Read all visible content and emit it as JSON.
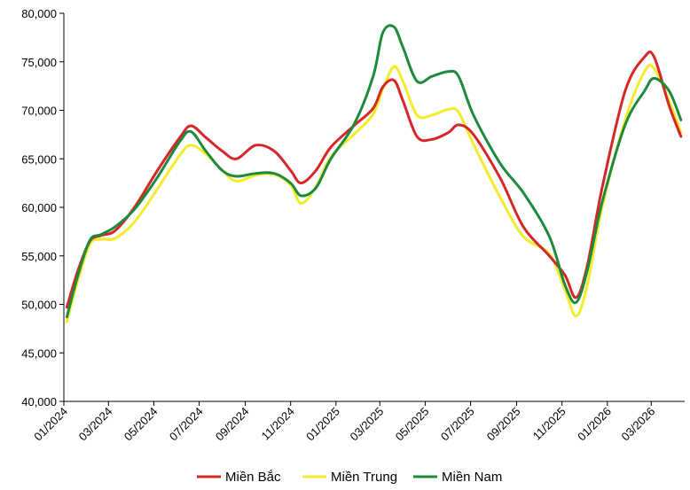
{
  "chart_data": {
    "type": "line",
    "title": "",
    "xlabel": "",
    "ylabel": "",
    "ylim": [
      40000,
      80000
    ],
    "yticks": [
      40000,
      45000,
      50000,
      55000,
      60000,
      65000,
      70000,
      75000,
      80000
    ],
    "ytick_labels": [
      "40,000",
      "45,000",
      "50,000",
      "55,000",
      "60,000",
      "65,000",
      "70,000",
      "75,000",
      "80,000"
    ],
    "x_tick_labels": [
      "01/2024",
      "03/2024",
      "05/2024",
      "07/2024",
      "09/2024",
      "11/2024",
      "01/2025",
      "03/2025",
      "05/2025",
      "07/2025",
      "09/2025",
      "11/2025",
      "01/2026",
      "03/2026"
    ],
    "grid": false,
    "legend_position": "bottom",
    "series": [
      {
        "name": "Miền Bắc",
        "color": "#d62728",
        "points": [
          [
            "2024-01-05",
            49700
          ],
          [
            "2024-01-20",
            53500
          ],
          [
            "2024-02-05",
            56500
          ],
          [
            "2024-02-20",
            57100
          ],
          [
            "2024-03-10",
            57600
          ],
          [
            "2024-04-05",
            60000
          ],
          [
            "2024-05-05",
            63700
          ],
          [
            "2024-06-05",
            67200
          ],
          [
            "2024-06-20",
            68400
          ],
          [
            "2024-07-10",
            67200
          ],
          [
            "2024-08-01",
            65800
          ],
          [
            "2024-08-20",
            65000
          ],
          [
            "2024-09-15",
            66400
          ],
          [
            "2024-10-10",
            65800
          ],
          [
            "2024-11-01",
            63800
          ],
          [
            "2024-11-15",
            62500
          ],
          [
            "2024-12-05",
            63800
          ],
          [
            "2024-12-25",
            66200
          ],
          [
            "2025-01-25",
            68400
          ],
          [
            "2025-02-20",
            70200
          ],
          [
            "2025-03-05",
            72400
          ],
          [
            "2025-03-20",
            73100
          ],
          [
            "2025-04-01",
            71000
          ],
          [
            "2025-04-20",
            67300
          ],
          [
            "2025-05-10",
            67000
          ],
          [
            "2025-06-01",
            67700
          ],
          [
            "2025-06-15",
            68500
          ],
          [
            "2025-07-05",
            67500
          ],
          [
            "2025-08-10",
            63000
          ],
          [
            "2025-09-10",
            58000
          ],
          [
            "2025-10-15",
            55000
          ],
          [
            "2025-11-05",
            53000
          ],
          [
            "2025-11-20",
            50700
          ],
          [
            "2025-12-05",
            54000
          ],
          [
            "2025-12-25",
            62000
          ],
          [
            "2026-01-25",
            72000
          ],
          [
            "2026-02-20",
            75500
          ],
          [
            "2026-03-05",
            75500
          ],
          [
            "2026-03-25",
            70500
          ],
          [
            "2026-04-10",
            67300
          ]
        ]
      },
      {
        "name": "Miền Trung",
        "color": "#f2ec2b",
        "points": [
          [
            "2024-01-05",
            48200
          ],
          [
            "2024-01-20",
            52500
          ],
          [
            "2024-02-05",
            56200
          ],
          [
            "2024-02-20",
            56700
          ],
          [
            "2024-03-10",
            56800
          ],
          [
            "2024-04-05",
            58500
          ],
          [
            "2024-05-05",
            61800
          ],
          [
            "2024-06-05",
            65400
          ],
          [
            "2024-06-20",
            66400
          ],
          [
            "2024-07-10",
            65500
          ],
          [
            "2024-08-01",
            63800
          ],
          [
            "2024-08-20",
            62700
          ],
          [
            "2024-09-15",
            63300
          ],
          [
            "2024-10-10",
            63400
          ],
          [
            "2024-11-01",
            62300
          ],
          [
            "2024-11-15",
            60400
          ],
          [
            "2024-12-05",
            62100
          ],
          [
            "2024-12-25",
            65200
          ],
          [
            "2025-01-25",
            67500
          ],
          [
            "2025-02-20",
            69600
          ],
          [
            "2025-03-05",
            72200
          ],
          [
            "2025-03-20",
            74500
          ],
          [
            "2025-04-01",
            73000
          ],
          [
            "2025-04-20",
            69500
          ],
          [
            "2025-05-10",
            69500
          ],
          [
            "2025-06-01",
            70100
          ],
          [
            "2025-06-15",
            69800
          ],
          [
            "2025-07-05",
            66500
          ],
          [
            "2025-08-10",
            61000
          ],
          [
            "2025-09-10",
            57000
          ],
          [
            "2025-10-15",
            55200
          ],
          [
            "2025-11-05",
            51500
          ],
          [
            "2025-11-20",
            48800
          ],
          [
            "2025-12-05",
            52000
          ],
          [
            "2025-12-25",
            60000
          ],
          [
            "2026-01-25",
            69000
          ],
          [
            "2026-02-20",
            74000
          ],
          [
            "2026-03-05",
            74300
          ],
          [
            "2026-03-25",
            71000
          ],
          [
            "2026-04-10",
            67700
          ]
        ]
      },
      {
        "name": "Miền Nam",
        "color": "#1e8a3e",
        "points": [
          [
            "2024-01-05",
            48700
          ],
          [
            "2024-01-20",
            53000
          ],
          [
            "2024-02-05",
            56600
          ],
          [
            "2024-02-20",
            57200
          ],
          [
            "2024-03-10",
            58000
          ],
          [
            "2024-04-05",
            59800
          ],
          [
            "2024-05-05",
            63000
          ],
          [
            "2024-06-05",
            66800
          ],
          [
            "2024-06-20",
            67800
          ],
          [
            "2024-07-10",
            65800
          ],
          [
            "2024-08-01",
            63800
          ],
          [
            "2024-08-20",
            63200
          ],
          [
            "2024-09-15",
            63500
          ],
          [
            "2024-10-10",
            63500
          ],
          [
            "2024-11-01",
            62500
          ],
          [
            "2024-11-15",
            61200
          ],
          [
            "2024-12-05",
            62000
          ],
          [
            "2024-12-25",
            65000
          ],
          [
            "2025-01-25",
            68500
          ],
          [
            "2025-02-20",
            73500
          ],
          [
            "2025-03-05",
            78000
          ],
          [
            "2025-03-20",
            78600
          ],
          [
            "2025-04-01",
            76500
          ],
          [
            "2025-04-20",
            73000
          ],
          [
            "2025-05-10",
            73500
          ],
          [
            "2025-06-01",
            74000
          ],
          [
            "2025-06-15",
            73500
          ],
          [
            "2025-07-05",
            69500
          ],
          [
            "2025-08-10",
            64500
          ],
          [
            "2025-09-10",
            61500
          ],
          [
            "2025-10-15",
            57000
          ],
          [
            "2025-11-05",
            52000
          ],
          [
            "2025-11-20",
            50200
          ],
          [
            "2025-12-05",
            53500
          ],
          [
            "2025-12-25",
            60500
          ],
          [
            "2026-01-25",
            68500
          ],
          [
            "2026-02-20",
            72000
          ],
          [
            "2026-03-05",
            73300
          ],
          [
            "2026-03-25",
            72000
          ],
          [
            "2026-04-10",
            69000
          ]
        ]
      }
    ]
  }
}
